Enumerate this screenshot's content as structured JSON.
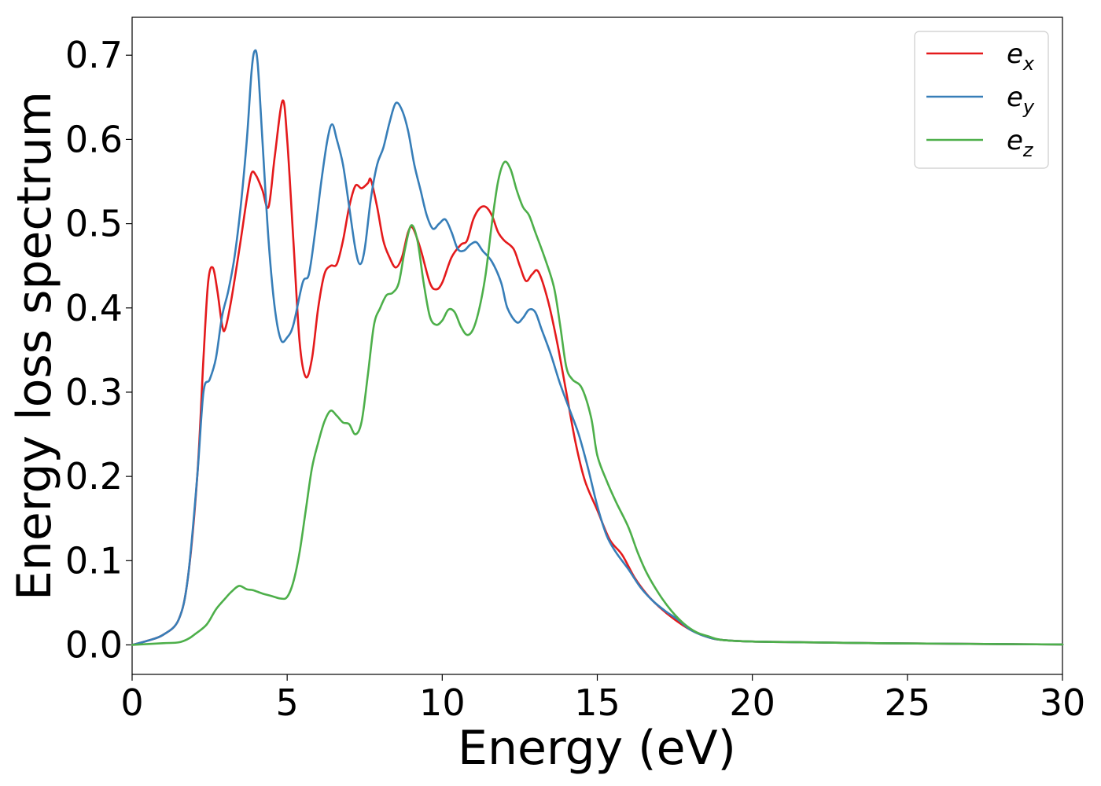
{
  "chart_data": {
    "type": "line",
    "title": "",
    "xlabel": "Energy (eV)",
    "ylabel": "Energy loss spectrum",
    "xlim": [
      0,
      30
    ],
    "ylim": [
      -0.035,
      0.745
    ],
    "xticks": [
      0,
      5,
      10,
      15,
      20,
      25,
      30
    ],
    "yticks": [
      0.0,
      0.1,
      0.2,
      0.3,
      0.4,
      0.5,
      0.6,
      0.7
    ],
    "xtick_labels": [
      "0",
      "5",
      "10",
      "15",
      "20",
      "25",
      "30"
    ],
    "ytick_labels": [
      "0.0",
      "0.1",
      "0.2",
      "0.3",
      "0.4",
      "0.5",
      "0.6",
      "0.7"
    ],
    "grid": false,
    "legend_position": "top-right",
    "series": [
      {
        "name": "e_x",
        "label_base": "e",
        "label_sub": "x",
        "color": "#e41a1c",
        "points": [
          [
            0,
            0
          ],
          [
            0.5,
            0.005
          ],
          [
            1.0,
            0.012
          ],
          [
            1.5,
            0.03
          ],
          [
            1.8,
            0.08
          ],
          [
            2.1,
            0.2
          ],
          [
            2.3,
            0.34
          ],
          [
            2.45,
            0.43
          ],
          [
            2.6,
            0.448
          ],
          [
            2.75,
            0.42
          ],
          [
            2.9,
            0.38
          ],
          [
            3.0,
            0.375
          ],
          [
            3.2,
            0.41
          ],
          [
            3.5,
            0.48
          ],
          [
            3.7,
            0.53
          ],
          [
            3.85,
            0.56
          ],
          [
            4.0,
            0.557
          ],
          [
            4.2,
            0.54
          ],
          [
            4.4,
            0.52
          ],
          [
            4.6,
            0.58
          ],
          [
            4.85,
            0.646
          ],
          [
            5.0,
            0.6
          ],
          [
            5.2,
            0.48
          ],
          [
            5.4,
            0.36
          ],
          [
            5.6,
            0.318
          ],
          [
            5.8,
            0.34
          ],
          [
            6.0,
            0.4
          ],
          [
            6.2,
            0.44
          ],
          [
            6.4,
            0.45
          ],
          [
            6.6,
            0.452
          ],
          [
            6.8,
            0.48
          ],
          [
            7.0,
            0.52
          ],
          [
            7.2,
            0.545
          ],
          [
            7.4,
            0.542
          ],
          [
            7.6,
            0.548
          ],
          [
            7.7,
            0.552
          ],
          [
            7.9,
            0.52
          ],
          [
            8.1,
            0.48
          ],
          [
            8.3,
            0.46
          ],
          [
            8.5,
            0.448
          ],
          [
            8.7,
            0.46
          ],
          [
            8.9,
            0.49
          ],
          [
            9.05,
            0.495
          ],
          [
            9.3,
            0.47
          ],
          [
            9.6,
            0.43
          ],
          [
            9.8,
            0.422
          ],
          [
            10.0,
            0.43
          ],
          [
            10.3,
            0.46
          ],
          [
            10.6,
            0.475
          ],
          [
            10.8,
            0.48
          ],
          [
            11.0,
            0.505
          ],
          [
            11.2,
            0.518
          ],
          [
            11.4,
            0.52
          ],
          [
            11.6,
            0.51
          ],
          [
            11.8,
            0.49
          ],
          [
            12.0,
            0.48
          ],
          [
            12.3,
            0.47
          ],
          [
            12.5,
            0.45
          ],
          [
            12.7,
            0.432
          ],
          [
            12.9,
            0.44
          ],
          [
            13.1,
            0.443
          ],
          [
            13.4,
            0.41
          ],
          [
            13.7,
            0.36
          ],
          [
            14.0,
            0.3
          ],
          [
            14.3,
            0.24
          ],
          [
            14.6,
            0.195
          ],
          [
            15.0,
            0.16
          ],
          [
            15.4,
            0.125
          ],
          [
            15.8,
            0.107
          ],
          [
            16.2,
            0.08
          ],
          [
            16.6,
            0.06
          ],
          [
            17.0,
            0.045
          ],
          [
            17.5,
            0.03
          ],
          [
            18.0,
            0.018
          ],
          [
            18.5,
            0.01
          ],
          [
            19.0,
            0.006
          ],
          [
            20.0,
            0.004
          ],
          [
            22.0,
            0.003
          ],
          [
            24.0,
            0.002
          ],
          [
            26.0,
            0.0015
          ],
          [
            28.0,
            0.001
          ],
          [
            30.0,
            0.0005
          ]
        ]
      },
      {
        "name": "e_y",
        "label_base": "e",
        "label_sub": "y",
        "color": "#377eb8",
        "points": [
          [
            0,
            0
          ],
          [
            0.5,
            0.005
          ],
          [
            1.0,
            0.012
          ],
          [
            1.5,
            0.03
          ],
          [
            1.8,
            0.08
          ],
          [
            2.1,
            0.2
          ],
          [
            2.3,
            0.3
          ],
          [
            2.5,
            0.315
          ],
          [
            2.7,
            0.34
          ],
          [
            2.9,
            0.39
          ],
          [
            3.1,
            0.42
          ],
          [
            3.3,
            0.46
          ],
          [
            3.5,
            0.52
          ],
          [
            3.7,
            0.6
          ],
          [
            3.85,
            0.68
          ],
          [
            3.95,
            0.705
          ],
          [
            4.05,
            0.69
          ],
          [
            4.2,
            0.6
          ],
          [
            4.4,
            0.48
          ],
          [
            4.6,
            0.4
          ],
          [
            4.8,
            0.362
          ],
          [
            5.0,
            0.365
          ],
          [
            5.2,
            0.38
          ],
          [
            5.5,
            0.43
          ],
          [
            5.7,
            0.44
          ],
          [
            5.9,
            0.49
          ],
          [
            6.1,
            0.55
          ],
          [
            6.3,
            0.6
          ],
          [
            6.45,
            0.618
          ],
          [
            6.6,
            0.6
          ],
          [
            6.8,
            0.57
          ],
          [
            7.0,
            0.52
          ],
          [
            7.2,
            0.47
          ],
          [
            7.35,
            0.452
          ],
          [
            7.5,
            0.47
          ],
          [
            7.7,
            0.53
          ],
          [
            7.9,
            0.57
          ],
          [
            8.1,
            0.59
          ],
          [
            8.3,
            0.62
          ],
          [
            8.5,
            0.643
          ],
          [
            8.7,
            0.635
          ],
          [
            8.9,
            0.61
          ],
          [
            9.1,
            0.57
          ],
          [
            9.3,
            0.54
          ],
          [
            9.5,
            0.51
          ],
          [
            9.7,
            0.494
          ],
          [
            9.9,
            0.5
          ],
          [
            10.1,
            0.505
          ],
          [
            10.3,
            0.49
          ],
          [
            10.5,
            0.47
          ],
          [
            10.7,
            0.468
          ],
          [
            10.9,
            0.475
          ],
          [
            11.1,
            0.478
          ],
          [
            11.3,
            0.468
          ],
          [
            11.6,
            0.455
          ],
          [
            11.9,
            0.43
          ],
          [
            12.1,
            0.4
          ],
          [
            12.4,
            0.383
          ],
          [
            12.6,
            0.388
          ],
          [
            12.8,
            0.398
          ],
          [
            13.0,
            0.395
          ],
          [
            13.2,
            0.375
          ],
          [
            13.5,
            0.345
          ],
          [
            13.8,
            0.31
          ],
          [
            14.1,
            0.28
          ],
          [
            14.4,
            0.25
          ],
          [
            14.7,
            0.21
          ],
          [
            15.0,
            0.165
          ],
          [
            15.3,
            0.13
          ],
          [
            15.6,
            0.11
          ],
          [
            16.0,
            0.09
          ],
          [
            16.4,
            0.068
          ],
          [
            16.8,
            0.052
          ],
          [
            17.2,
            0.04
          ],
          [
            17.6,
            0.03
          ],
          [
            18.0,
            0.018
          ],
          [
            18.5,
            0.01
          ],
          [
            19.0,
            0.006
          ],
          [
            20.0,
            0.004
          ],
          [
            22.0,
            0.003
          ],
          [
            24.0,
            0.002
          ],
          [
            26.0,
            0.0015
          ],
          [
            28.0,
            0.001
          ],
          [
            30.0,
            0.0005
          ]
        ]
      },
      {
        "name": "e_z",
        "label_base": "e",
        "label_sub": "z",
        "color": "#4daf4a",
        "points": [
          [
            0,
            0
          ],
          [
            1.0,
            0.002
          ],
          [
            1.5,
            0.003
          ],
          [
            1.8,
            0.007
          ],
          [
            2.0,
            0.012
          ],
          [
            2.4,
            0.024
          ],
          [
            2.7,
            0.042
          ],
          [
            3.0,
            0.055
          ],
          [
            3.2,
            0.063
          ],
          [
            3.45,
            0.07
          ],
          [
            3.7,
            0.066
          ],
          [
            3.9,
            0.065
          ],
          [
            4.2,
            0.061
          ],
          [
            4.5,
            0.058
          ],
          [
            4.8,
            0.055
          ],
          [
            5.0,
            0.057
          ],
          [
            5.2,
            0.075
          ],
          [
            5.4,
            0.11
          ],
          [
            5.6,
            0.16
          ],
          [
            5.8,
            0.21
          ],
          [
            6.0,
            0.24
          ],
          [
            6.2,
            0.265
          ],
          [
            6.4,
            0.278
          ],
          [
            6.6,
            0.272
          ],
          [
            6.8,
            0.264
          ],
          [
            7.0,
            0.262
          ],
          [
            7.2,
            0.25
          ],
          [
            7.4,
            0.265
          ],
          [
            7.6,
            0.32
          ],
          [
            7.8,
            0.38
          ],
          [
            8.0,
            0.4
          ],
          [
            8.2,
            0.415
          ],
          [
            8.4,
            0.418
          ],
          [
            8.6,
            0.43
          ],
          [
            8.8,
            0.47
          ],
          [
            9.0,
            0.498
          ],
          [
            9.2,
            0.48
          ],
          [
            9.4,
            0.43
          ],
          [
            9.6,
            0.39
          ],
          [
            9.8,
            0.38
          ],
          [
            10.0,
            0.385
          ],
          [
            10.2,
            0.398
          ],
          [
            10.4,
            0.395
          ],
          [
            10.6,
            0.378
          ],
          [
            10.8,
            0.368
          ],
          [
            11.0,
            0.375
          ],
          [
            11.2,
            0.4
          ],
          [
            11.4,
            0.44
          ],
          [
            11.6,
            0.5
          ],
          [
            11.8,
            0.55
          ],
          [
            12.0,
            0.573
          ],
          [
            12.2,
            0.565
          ],
          [
            12.4,
            0.54
          ],
          [
            12.6,
            0.52
          ],
          [
            12.8,
            0.51
          ],
          [
            13.0,
            0.49
          ],
          [
            13.3,
            0.46
          ],
          [
            13.6,
            0.425
          ],
          [
            13.8,
            0.38
          ],
          [
            14.0,
            0.33
          ],
          [
            14.2,
            0.315
          ],
          [
            14.5,
            0.305
          ],
          [
            14.8,
            0.27
          ],
          [
            15.0,
            0.225
          ],
          [
            15.3,
            0.195
          ],
          [
            15.6,
            0.17
          ],
          [
            16.0,
            0.14
          ],
          [
            16.3,
            0.11
          ],
          [
            16.6,
            0.085
          ],
          [
            17.0,
            0.06
          ],
          [
            17.4,
            0.04
          ],
          [
            17.8,
            0.025
          ],
          [
            18.2,
            0.015
          ],
          [
            18.6,
            0.01
          ],
          [
            19.0,
            0.006
          ],
          [
            20.0,
            0.004
          ],
          [
            22.0,
            0.003
          ],
          [
            24.0,
            0.002
          ],
          [
            26.0,
            0.0015
          ],
          [
            28.0,
            0.001
          ],
          [
            30.0,
            0.0005
          ]
        ]
      }
    ]
  }
}
